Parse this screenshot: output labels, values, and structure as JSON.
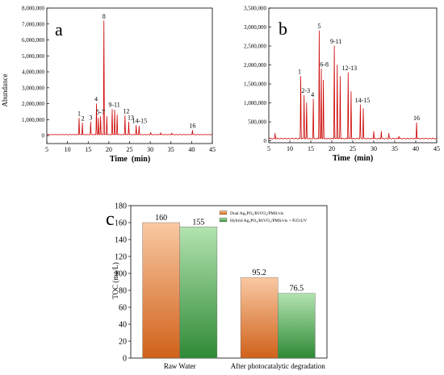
{
  "chart_data": [
    {
      "type": "line",
      "panel_label": "a",
      "xlabel": "Time  (min)",
      "ylabel": "Abundance",
      "xlim": [
        5,
        45
      ],
      "ylim": [
        -500000,
        8000000
      ],
      "xticks": [
        5,
        10,
        15,
        20,
        25,
        30,
        35,
        40,
        45
      ],
      "xtick_labels": [
        "5",
        "10",
        "15",
        "20",
        "25",
        "30",
        "35",
        "40",
        "45"
      ],
      "yticks": [
        0,
        1000000,
        2000000,
        3000000,
        4000000,
        5000000,
        6000000,
        7000000,
        8000000
      ],
      "ytick_labels": [
        "0",
        "1,000,000",
        "2,000,000",
        "3,000,000",
        "4,000,000",
        "5,000,000",
        "6,000,000",
        "7,000,000",
        "8,000,000"
      ],
      "baseline": 60000,
      "color": "#cc0000",
      "series": [
        {
          "peaks": [
            {
              "x": 12.8,
              "y": 1100000
            },
            {
              "x": 13.6,
              "y": 800000
            },
            {
              "x": 15.6,
              "y": 850000
            },
            {
              "x": 17.0,
              "y": 2000000
            },
            {
              "x": 17.5,
              "y": 1100000
            },
            {
              "x": 18.0,
              "y": 1200000
            },
            {
              "x": 18.8,
              "y": 7200000
            },
            {
              "x": 19.5,
              "y": 1200000
            },
            {
              "x": 20.8,
              "y": 1650000
            },
            {
              "x": 21.4,
              "y": 1600000
            },
            {
              "x": 22.0,
              "y": 1300000
            },
            {
              "x": 23.9,
              "y": 1250000
            },
            {
              "x": 24.8,
              "y": 850000
            },
            {
              "x": 26.6,
              "y": 650000
            },
            {
              "x": 27.3,
              "y": 600000
            },
            {
              "x": 30.1,
              "y": 200000
            },
            {
              "x": 32.5,
              "y": 180000
            },
            {
              "x": 35.2,
              "y": 160000
            },
            {
              "x": 40.2,
              "y": 330000
            }
          ]
        }
      ],
      "peak_labels": [
        {
          "text": "1",
          "x": 12.8,
          "y": 1100000
        },
        {
          "text": "2",
          "x": 13.7,
          "y": 800000
        },
        {
          "text": "3",
          "x": 15.6,
          "y": 850000
        },
        {
          "text": "4",
          "x": 16.9,
          "y": 2000000
        },
        {
          "text": "5-7",
          "x": 18.0,
          "y": 1200000
        },
        {
          "text": "8",
          "x": 18.8,
          "y": 7200000
        },
        {
          "text": "9-11",
          "x": 21.3,
          "y": 1650000
        },
        {
          "text": "12",
          "x": 24.2,
          "y": 1250000
        },
        {
          "text": "13",
          "x": 25.3,
          "y": 850000
        },
        {
          "text": "14-15",
          "x": 27.4,
          "y": 650000
        },
        {
          "text": "16",
          "x": 40.2,
          "y": 330000
        }
      ]
    },
    {
      "type": "line",
      "panel_label": "b",
      "xlabel": "Time  (min)",
      "ylabel": "",
      "xlim": [
        5,
        45
      ],
      "ylim": [
        -50000,
        3500000
      ],
      "xticks": [
        5,
        10,
        15,
        20,
        25,
        30,
        35,
        40,
        45
      ],
      "xtick_labels": [
        "5",
        "10",
        "15",
        "20",
        "25",
        "30",
        "35",
        "40",
        "45"
      ],
      "yticks": [
        0,
        500000,
        1000000,
        1500000,
        2000000,
        2500000,
        3000000,
        3500000
      ],
      "ytick_labels": [
        "0",
        "500,000",
        "1,000,000",
        "1,500,000",
        "2,000,000",
        "2,500,000",
        "3,000,000",
        "3,500,000"
      ],
      "baseline": 60000,
      "color": "#cc0000",
      "series": [
        {
          "peaks": [
            {
              "x": 6.5,
              "y": 200000
            },
            {
              "x": 12.6,
              "y": 1700000
            },
            {
              "x": 13.4,
              "y": 1200000
            },
            {
              "x": 14.0,
              "y": 1000000
            },
            {
              "x": 15.6,
              "y": 1100000
            },
            {
              "x": 17.0,
              "y": 2900000
            },
            {
              "x": 17.5,
              "y": 1900000
            },
            {
              "x": 18.0,
              "y": 1600000
            },
            {
              "x": 20.6,
              "y": 2500000
            },
            {
              "x": 21.3,
              "y": 2000000
            },
            {
              "x": 22.0,
              "y": 1700000
            },
            {
              "x": 23.9,
              "y": 1800000
            },
            {
              "x": 24.6,
              "y": 1300000
            },
            {
              "x": 26.8,
              "y": 950000
            },
            {
              "x": 27.5,
              "y": 850000
            },
            {
              "x": 30.0,
              "y": 250000
            },
            {
              "x": 31.8,
              "y": 250000
            },
            {
              "x": 33.6,
              "y": 200000
            },
            {
              "x": 36.0,
              "y": 120000
            },
            {
              "x": 40.2,
              "y": 480000
            }
          ]
        }
      ],
      "peak_labels": [
        {
          "text": "1",
          "x": 12.3,
          "y": 1700000
        },
        {
          "text": "2-3",
          "x": 13.8,
          "y": 1200000
        },
        {
          "text": "4",
          "x": 15.4,
          "y": 1100000
        },
        {
          "text": "5",
          "x": 17.0,
          "y": 2900000
        },
        {
          "text": "6-8",
          "x": 18.2,
          "y": 1900000
        },
        {
          "text": "9-11",
          "x": 21.0,
          "y": 2500000
        },
        {
          "text": "12-13",
          "x": 24.2,
          "y": 1800000
        },
        {
          "text": "14-15",
          "x": 27.3,
          "y": 950000
        },
        {
          "text": "16",
          "x": 40.2,
          "y": 480000
        }
      ]
    },
    {
      "type": "bar",
      "panel_label": "c",
      "xlabel": "",
      "ylabel": "TOC (mg/L)",
      "ylim": [
        0,
        180
      ],
      "yticks": [
        0,
        20,
        40,
        60,
        80,
        100,
        120,
        140,
        160,
        180
      ],
      "ytick_labels": [
        "0",
        "20",
        "40",
        "60",
        "80",
        "100",
        "120",
        "140",
        "160",
        "180"
      ],
      "categories": [
        "Raw Water",
        "After photocatalytic degradation"
      ],
      "series": [
        {
          "name": "Dual Ag₃PO₄/BiVO₄/PMS/vis",
          "values": [
            160,
            95.2
          ],
          "value_labels": [
            "160",
            "95.2"
          ],
          "color_top": "#f9c9a3",
          "color_bottom": "#d0611a"
        },
        {
          "name": "Hybrid Ag₃PO₄/BiVO₄/PMS/vis + P25/UV",
          "values": [
            155,
            76.5
          ],
          "value_labels": [
            "155",
            "76.5"
          ],
          "color_top": "#b3e3b0",
          "color_bottom": "#2f8a36"
        }
      ],
      "legend_position": "top-right",
      "grid": false
    }
  ]
}
